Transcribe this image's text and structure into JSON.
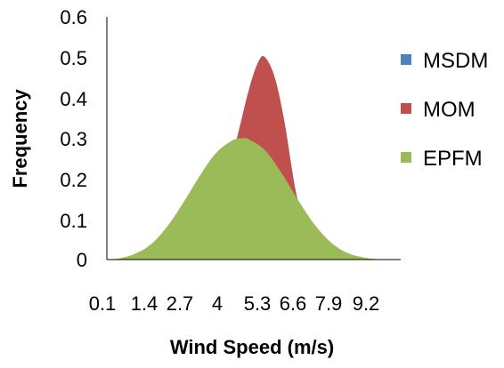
{
  "chart_data": {
    "type": "area",
    "title": "",
    "xlabel": "Wind Speed (m/s)",
    "ylabel": "Frequency",
    "categories": [
      "0.1",
      "1.4",
      "2.7",
      "4",
      "5.3",
      "6.6",
      "7.9",
      "9.2"
    ],
    "x_tick_labels": [
      "0.1",
      "1.4",
      "2.7",
      "4",
      "5.3",
      "6.6",
      "7.9",
      "9.2"
    ],
    "xlim": [
      0.1,
      9.2
    ],
    "ylim": [
      0,
      0.6
    ],
    "yticks": [
      "0",
      "0.1",
      "0.2",
      "0.3",
      "0.4",
      "0.5",
      "0.6"
    ],
    "grid": false,
    "legend_position": "right",
    "series": [
      {
        "name": "MSDM",
        "color": "#4F81BD",
        "x": [
          0.1,
          0.5,
          1.0,
          1.5,
          2.0,
          2.5,
          3.0,
          3.5,
          4.0,
          4.5,
          4.8,
          5.0,
          5.3,
          5.6,
          6.0,
          6.5,
          7.0
        ],
        "values": [
          0.0,
          0.0,
          0.0,
          0.001,
          0.004,
          0.015,
          0.05,
          0.13,
          0.26,
          0.42,
          0.49,
          0.5,
          0.45,
          0.34,
          0.15,
          0.03,
          0.0
        ]
      },
      {
        "name": "MOM",
        "color": "#C0504D",
        "x": [
          0.1,
          0.5,
          1.0,
          1.5,
          2.0,
          2.5,
          3.0,
          3.5,
          4.0,
          4.5,
          4.8,
          5.0,
          5.3,
          5.6,
          6.0,
          6.5,
          7.0
        ],
        "values": [
          0.0,
          0.0,
          0.0,
          0.001,
          0.004,
          0.015,
          0.05,
          0.13,
          0.26,
          0.42,
          0.49,
          0.5,
          0.45,
          0.34,
          0.15,
          0.03,
          0.0
        ]
      },
      {
        "name": "EPFM",
        "color": "#9BBB59",
        "x": [
          0.1,
          0.5,
          1.0,
          1.5,
          2.0,
          2.5,
          3.0,
          3.5,
          4.0,
          4.3,
          4.5,
          5.0,
          5.5,
          6.0,
          6.5,
          7.0,
          7.5,
          8.0,
          8.5,
          9.2
        ],
        "values": [
          0.0,
          0.003,
          0.015,
          0.04,
          0.085,
          0.145,
          0.21,
          0.265,
          0.295,
          0.3,
          0.297,
          0.27,
          0.215,
          0.15,
          0.09,
          0.045,
          0.018,
          0.006,
          0.001,
          0.0
        ]
      }
    ]
  }
}
